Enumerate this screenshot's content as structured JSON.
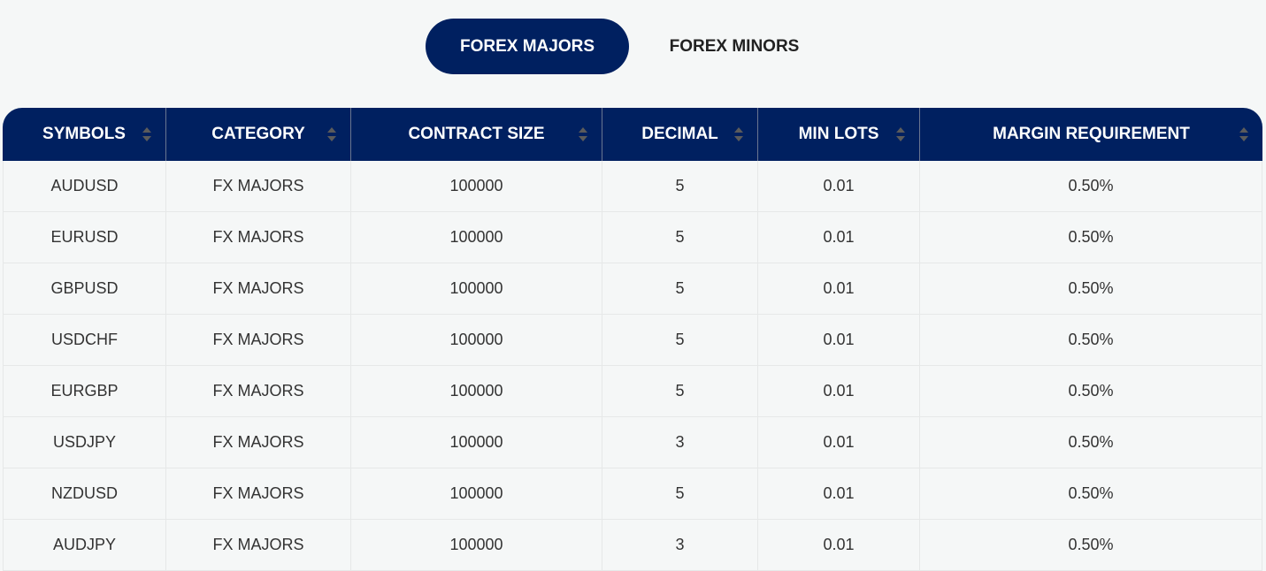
{
  "tabs": [
    {
      "label": "FOREX MAJORS",
      "active": true
    },
    {
      "label": "FOREX MINORS",
      "active": false
    }
  ],
  "colors": {
    "header_bg": "#002060",
    "page_bg": "#f5f7f7"
  },
  "table": {
    "columns": [
      "SYMBOLS",
      "CATEGORY",
      "CONTRACT SIZE",
      "DECIMAL",
      "MIN LOTS",
      "MARGIN REQUIREMENT"
    ],
    "rows": [
      [
        "AUDUSD",
        "FX MAJORS",
        "100000",
        "5",
        "0.01",
        "0.50%"
      ],
      [
        "EURUSD",
        "FX MAJORS",
        "100000",
        "5",
        "0.01",
        "0.50%"
      ],
      [
        "GBPUSD",
        "FX MAJORS",
        "100000",
        "5",
        "0.01",
        "0.50%"
      ],
      [
        "USDCHF",
        "FX MAJORS",
        "100000",
        "5",
        "0.01",
        "0.50%"
      ],
      [
        "EURGBP",
        "FX MAJORS",
        "100000",
        "5",
        "0.01",
        "0.50%"
      ],
      [
        "USDJPY",
        "FX MAJORS",
        "100000",
        "3",
        "0.01",
        "0.50%"
      ],
      [
        "NZDUSD",
        "FX MAJORS",
        "100000",
        "5",
        "0.01",
        "0.50%"
      ],
      [
        "AUDJPY",
        "FX MAJORS",
        "100000",
        "3",
        "0.01",
        "0.50%"
      ]
    ]
  }
}
